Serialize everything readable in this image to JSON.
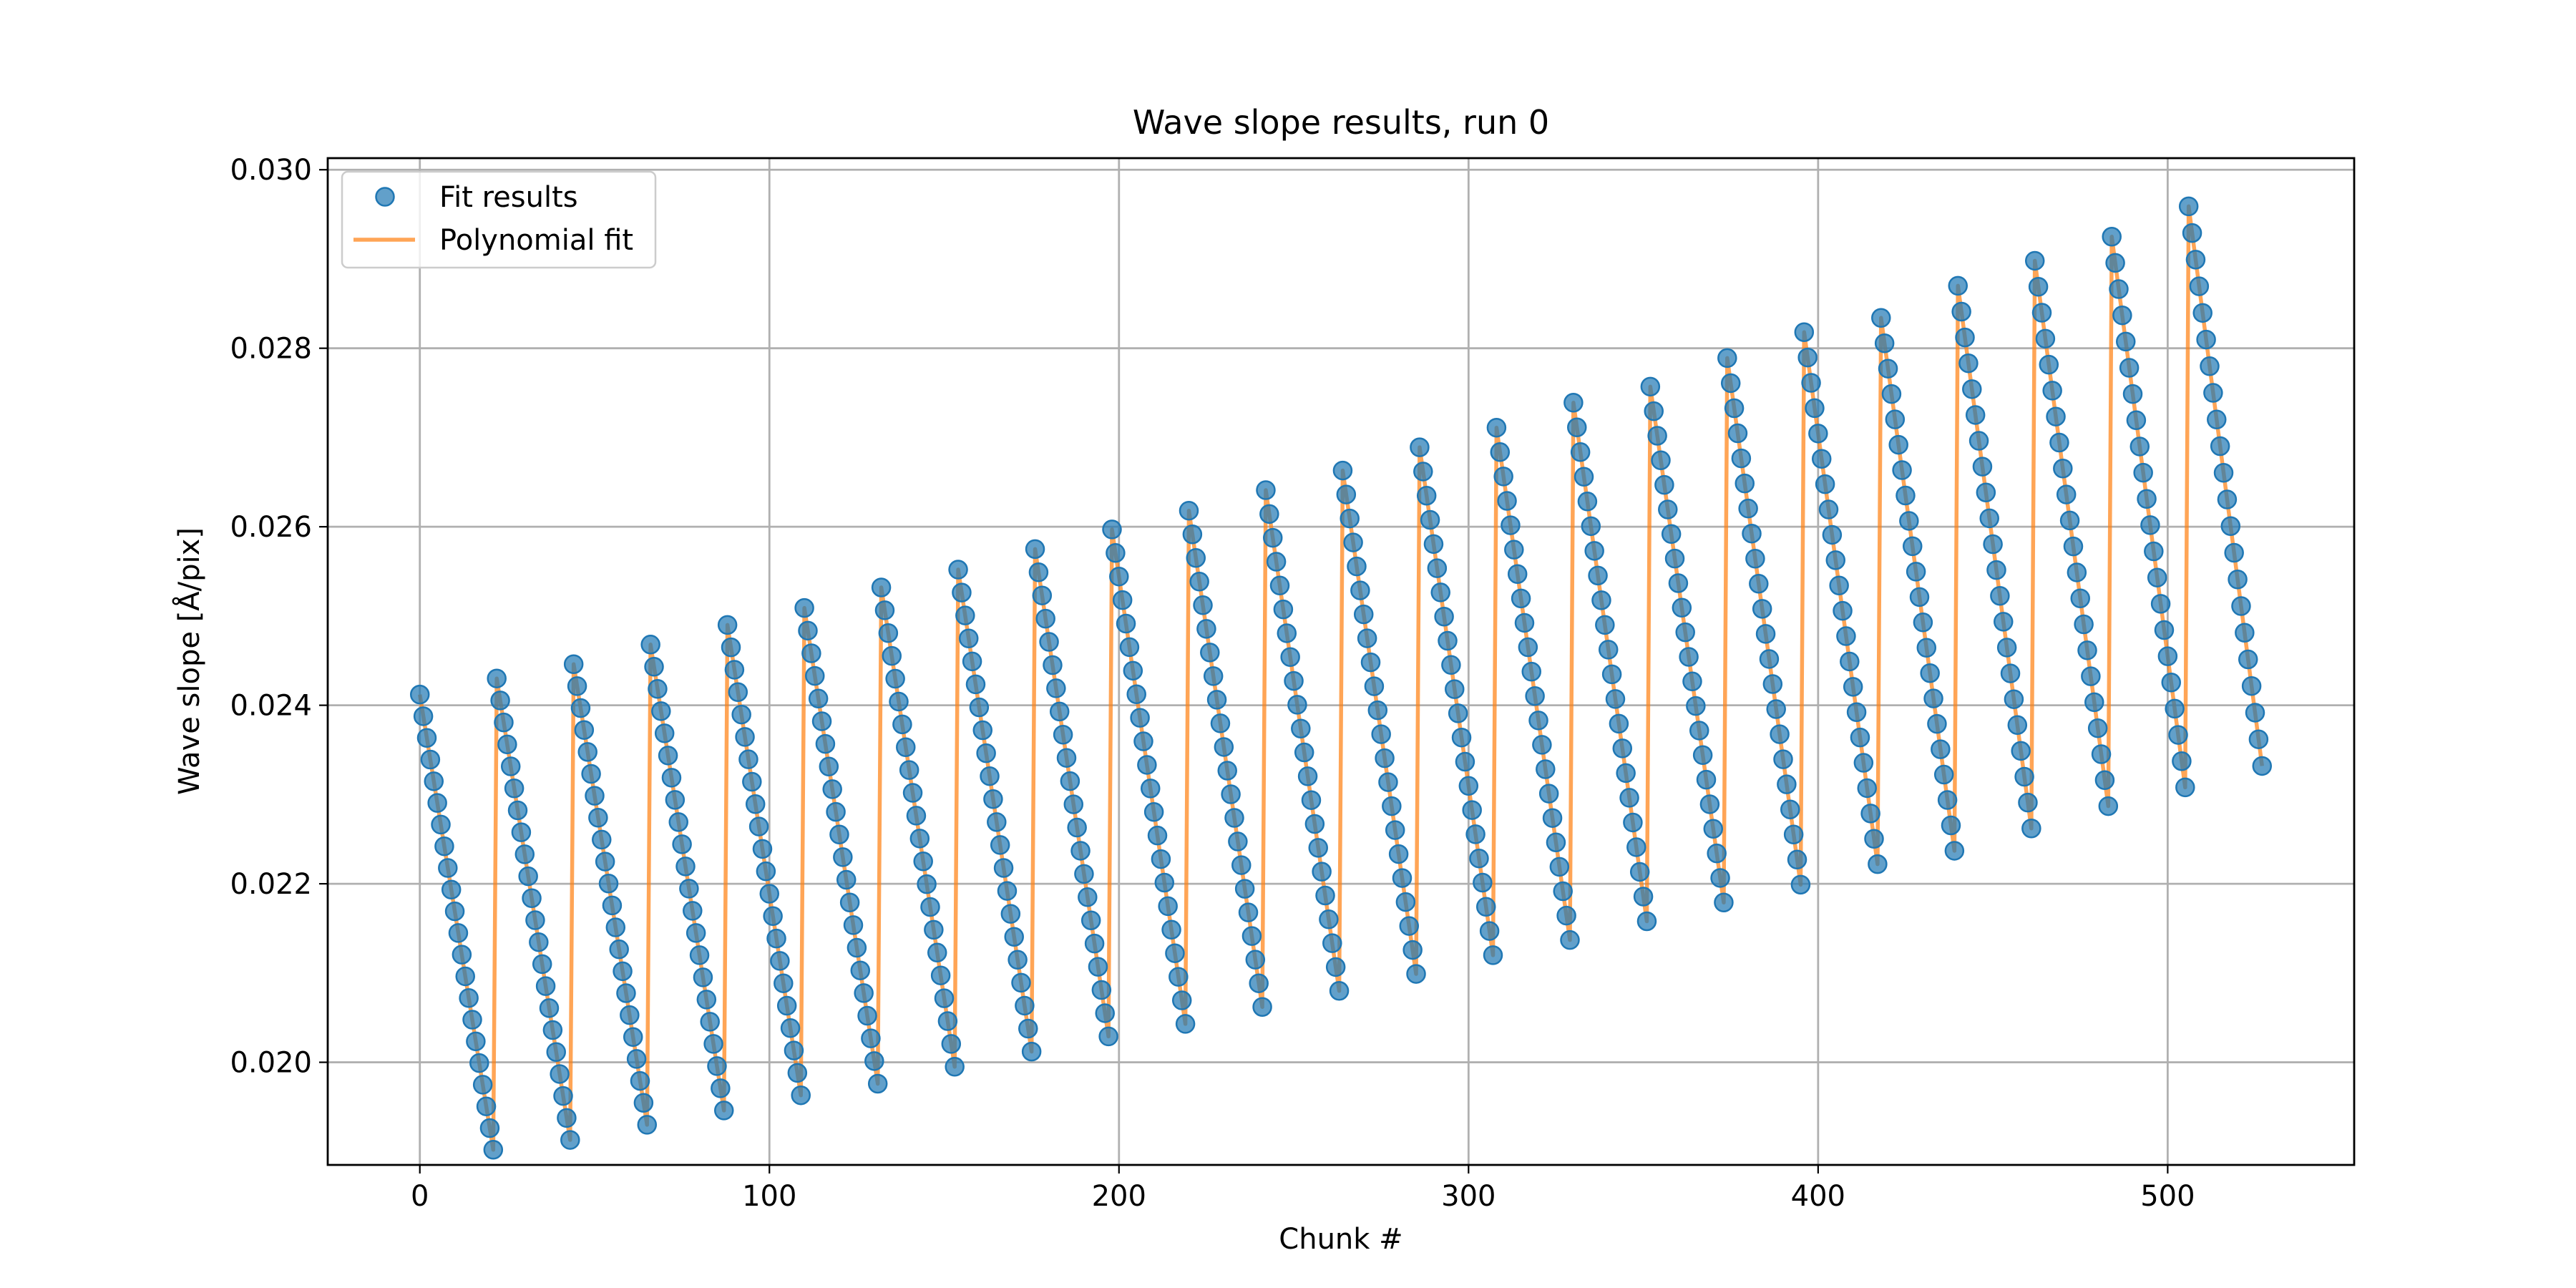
{
  "chart_data": {
    "type": "scatter",
    "title": "Wave slope results, run 0",
    "xlabel": "Chunk #",
    "ylabel": "Wave slope [Å/pix]",
    "xlim": [
      -26.35,
      553.35
    ],
    "ylim": [
      0.01885,
      0.03013
    ],
    "xticks": [
      0,
      100,
      200,
      300,
      400,
      500
    ],
    "xtick_labels": [
      "0",
      "100",
      "200",
      "300",
      "400",
      "500"
    ],
    "yticks": [
      0.02,
      0.022,
      0.024,
      0.026,
      0.028,
      0.03
    ],
    "ytick_labels": [
      "0.020",
      "0.022",
      "0.024",
      "0.026",
      "0.028",
      "0.030"
    ],
    "grid": true,
    "legend": {
      "placement": "upper left",
      "entries": [
        "Fit results",
        "Polynomial fit"
      ]
    },
    "colors": {
      "points": "#1f77b4",
      "fit_line": "#ff7f0e"
    },
    "x_range": [
      0,
      527
    ],
    "cycle_length": 22,
    "series": [
      {
        "name": "Fit results",
        "style": "markers",
        "color": "#1f77b4"
      },
      {
        "name": "Polynomial fit",
        "style": "line",
        "color": "#ff7f0e"
      }
    ],
    "cycles": [
      {
        "x_start": 0,
        "x_end": 21,
        "y_start": 0.02412,
        "y_end": 0.01902
      },
      {
        "x_start": 22,
        "x_end": 43,
        "y_start": 0.0243,
        "y_end": 0.01913
      },
      {
        "x_start": 44,
        "x_end": 65,
        "y_start": 0.02446,
        "y_end": 0.0193
      },
      {
        "x_start": 66,
        "x_end": 87,
        "y_start": 0.02468,
        "y_end": 0.01946
      },
      {
        "x_start": 88,
        "x_end": 109,
        "y_start": 0.0249,
        "y_end": 0.01963
      },
      {
        "x_start": 110,
        "x_end": 131,
        "y_start": 0.02509,
        "y_end": 0.01976
      },
      {
        "x_start": 132,
        "x_end": 153,
        "y_start": 0.02532,
        "y_end": 0.01995
      },
      {
        "x_start": 154,
        "x_end": 175,
        "y_start": 0.02552,
        "y_end": 0.02012
      },
      {
        "x_start": 176,
        "x_end": 197,
        "y_start": 0.02575,
        "y_end": 0.02029
      },
      {
        "x_start": 198,
        "x_end": 219,
        "y_start": 0.02597,
        "y_end": 0.02043
      },
      {
        "x_start": 220,
        "x_end": 241,
        "y_start": 0.02618,
        "y_end": 0.02062
      },
      {
        "x_start": 242,
        "x_end": 263,
        "y_start": 0.02641,
        "y_end": 0.0208
      },
      {
        "x_start": 264,
        "x_end": 285,
        "y_start": 0.02663,
        "y_end": 0.02099
      },
      {
        "x_start": 286,
        "x_end": 307,
        "y_start": 0.02689,
        "y_end": 0.0212
      },
      {
        "x_start": 308,
        "x_end": 329,
        "y_start": 0.02711,
        "y_end": 0.02137
      },
      {
        "x_start": 330,
        "x_end": 351,
        "y_start": 0.02739,
        "y_end": 0.02158
      },
      {
        "x_start": 352,
        "x_end": 373,
        "y_start": 0.02757,
        "y_end": 0.02179
      },
      {
        "x_start": 374,
        "x_end": 395,
        "y_start": 0.02789,
        "y_end": 0.02199
      },
      {
        "x_start": 396,
        "x_end": 417,
        "y_start": 0.02818,
        "y_end": 0.02222
      },
      {
        "x_start": 418,
        "x_end": 439,
        "y_start": 0.02834,
        "y_end": 0.02237
      },
      {
        "x_start": 440,
        "x_end": 461,
        "y_start": 0.0287,
        "y_end": 0.02262
      },
      {
        "x_start": 462,
        "x_end": 483,
        "y_start": 0.02898,
        "y_end": 0.02287
      },
      {
        "x_start": 484,
        "x_end": 505,
        "y_start": 0.02925,
        "y_end": 0.02308
      },
      {
        "x_start": 506,
        "x_end": 527,
        "y_start": 0.02959,
        "y_end": 0.02332
      }
    ]
  }
}
